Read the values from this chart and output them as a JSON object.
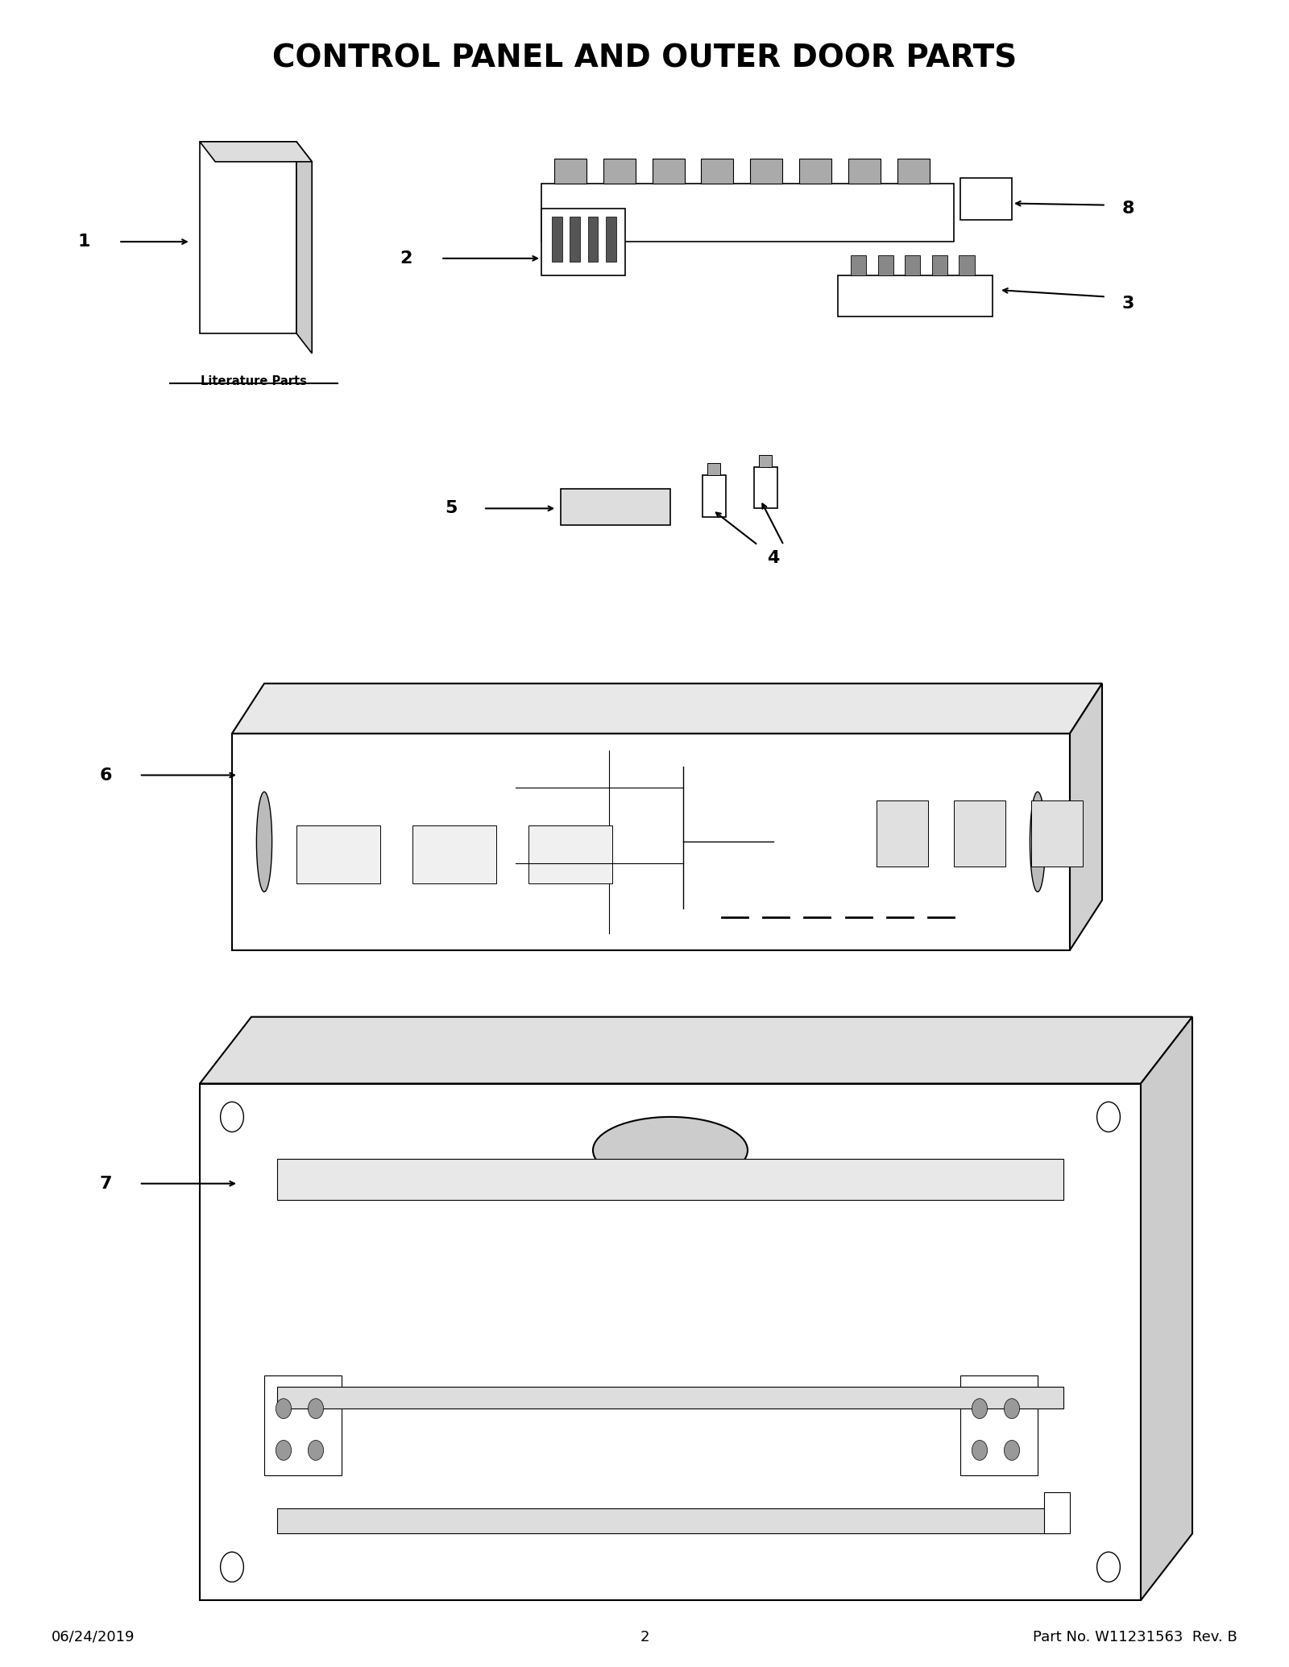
{
  "title": "CONTROL PANEL AND OUTER DOOR PARTS",
  "title_fontsize": 28,
  "title_fontweight": "bold",
  "background_color": "#ffffff",
  "line_color": "#000000",
  "footer_left": "06/24/2019",
  "footer_center": "2",
  "footer_right": "Part No. W11231563  Rev. B",
  "footer_fontsize": 13,
  "label_fontsize": 16,
  "lit_label": "Literature Parts"
}
